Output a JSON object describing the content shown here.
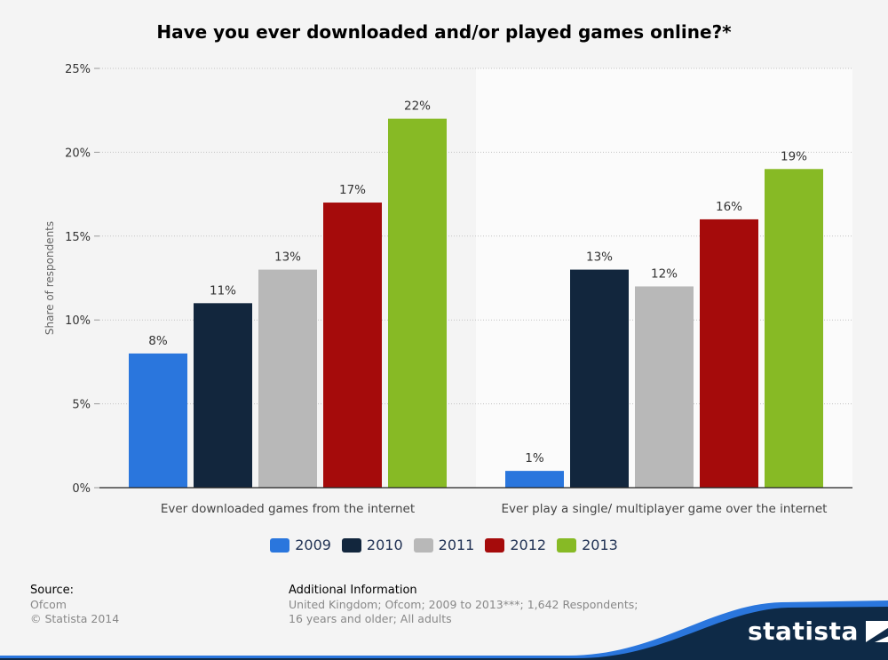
{
  "title": "Have you ever downloaded and/or played games online?*",
  "chart_data": {
    "type": "bar",
    "categories": [
      "Ever downloaded games from the internet",
      "Ever play a single/ multiplayer game over the internet"
    ],
    "series": [
      {
        "name": "2009",
        "color": "#2a76dd",
        "values": [
          8,
          1
        ]
      },
      {
        "name": "2010",
        "color": "#12263d",
        "values": [
          11,
          13
        ]
      },
      {
        "name": "2011",
        "color": "#b8b8b8",
        "values": [
          13,
          12
        ]
      },
      {
        "name": "2012",
        "color": "#a50b0b",
        "values": [
          17,
          16
        ]
      },
      {
        "name": "2013",
        "color": "#87ba25",
        "values": [
          22,
          19
        ]
      }
    ],
    "value_labels": [
      [
        "8%",
        "1%"
      ],
      [
        "11%",
        "13%"
      ],
      [
        "13%",
        "12%"
      ],
      [
        "17%",
        "16%"
      ],
      [
        "22%",
        "19%"
      ]
    ],
    "ylabel": "Share of respondents",
    "ylim": [
      0,
      25
    ],
    "yticks": [
      0,
      5,
      10,
      15,
      20,
      25
    ],
    "ytick_labels": [
      "0%",
      "5%",
      "10%",
      "15%",
      "20%",
      "25%"
    ],
    "grid": true,
    "legend": "bottom"
  },
  "footer": {
    "source_head": "Source:",
    "source_lines": [
      "Ofcom",
      "© Statista 2014"
    ],
    "info_head": "Additional Information",
    "info_lines": [
      "United Kingdom; Ofcom; 2009 to 2013***; 1,642 Respondents;",
      "16 years and older; All adults"
    ]
  },
  "brand": {
    "name": "statista",
    "colors": {
      "dark": "#0e2a47",
      "accent": "#2a76dd"
    }
  }
}
